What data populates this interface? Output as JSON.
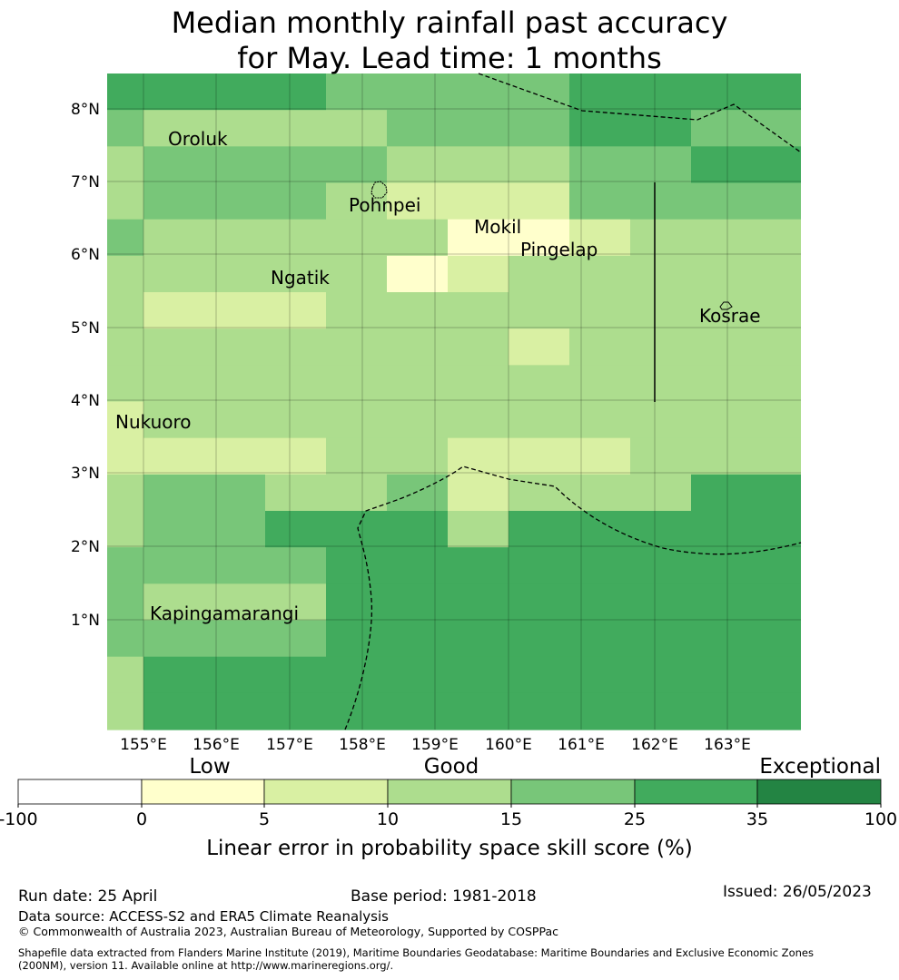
{
  "title": {
    "line1": "Median monthly rainfall past accuracy",
    "line2": "for May. Lead time: 1 months"
  },
  "map": {
    "lon_labels": [
      "155°E",
      "156°E",
      "157°E",
      "158°E",
      "159°E",
      "160°E",
      "161°E",
      "162°E",
      "163°E"
    ],
    "lat_labels": [
      "8°N",
      "7°N",
      "6°N",
      "5°N",
      "4°N",
      "3°N",
      "2°N",
      "1°N"
    ],
    "places": [
      {
        "name": "Oroluk"
      },
      {
        "name": "Pohnpei"
      },
      {
        "name": "Mokil"
      },
      {
        "name": "Pingelap"
      },
      {
        "name": "Ngatik"
      },
      {
        "name": "Kosrae"
      },
      {
        "name": "Nukuoro"
      },
      {
        "name": "Kapingamarangi"
      }
    ],
    "grid_classes": [
      "5554444555",
      "4333444554",
      "3444333445",
      "3443222444",
      "4333311233",
      "3333123333",
      "3223333333",
      "3333332333",
      "3333333333",
      "2333333333",
      "2223322233",
      "3433423335",
      "3455535555",
      "4445555555",
      "4335555555",
      "4445555555",
      "3555555555",
      "3555555555"
    ]
  },
  "colorbar": {
    "category_labels": [
      "Low",
      "Good",
      "Exceptional"
    ],
    "tick_labels": [
      "-100",
      "0",
      "5",
      "10",
      "15",
      "25",
      "35",
      "100"
    ],
    "colors": [
      "#ffffff",
      "#ffffcc",
      "#d9f0a3",
      "#addd8e",
      "#78c679",
      "#41ab5d",
      "#238443"
    ],
    "label": "Linear error in probability space skill score (%)"
  },
  "footer": {
    "run_date": "Run date: 25 April",
    "base_period": "Base period: 1981-2018",
    "issued": "Issued: 26/05/2023",
    "data_source": "Data source: ACCESS-S2 and ERA5 Climate Reanalysis",
    "copyright": "© Commonwealth of Australia 2023, Australian Bureau of Meteorology, Supported by COSPPac",
    "shapefile_line1": "Shapefile data extracted from Flanders Marine Institute (2019), Maritime Boundaries Geodatabase: Maritime Boundaries and Exclusive Economic Zones",
    "shapefile_line2": "(200NM), version 11. Available online at http://www.marineregions.org/."
  }
}
